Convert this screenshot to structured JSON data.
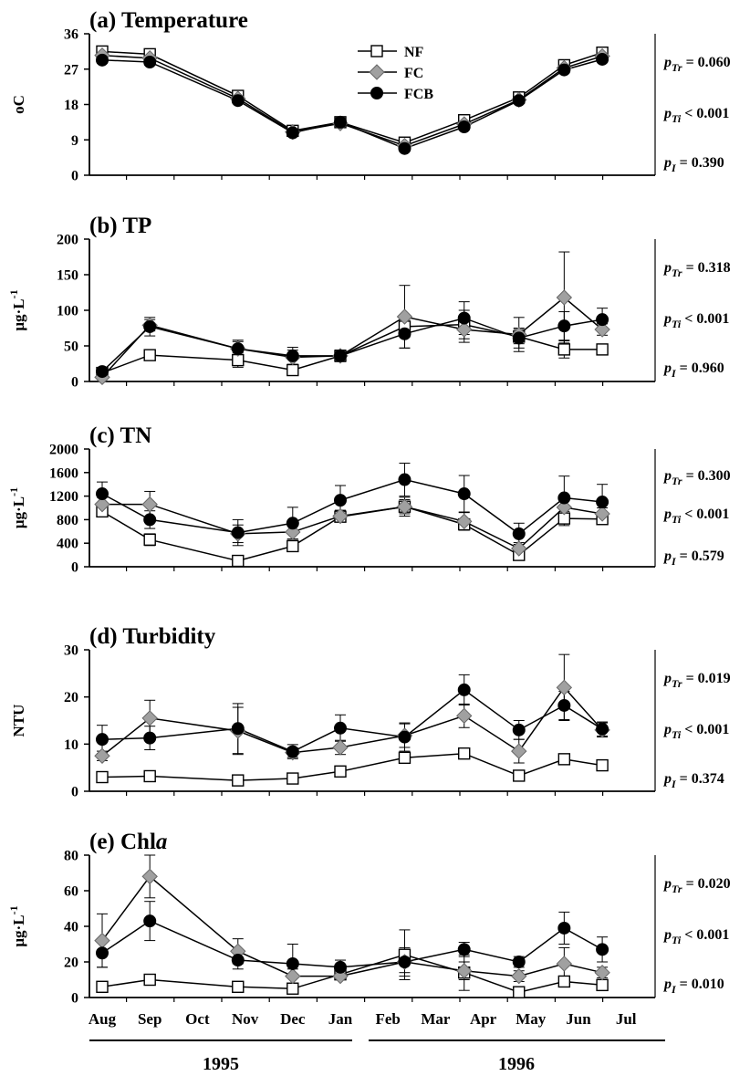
{
  "figure": {
    "months": [
      "Aug",
      "Sep",
      "Oct",
      "Nov",
      "Dec",
      "Jan",
      "Feb",
      "Mar",
      "Apr",
      "May",
      "Jun",
      "Jul"
    ],
    "years": [
      "1995",
      "1996"
    ],
    "legend": [
      "NF",
      "FC",
      "FCB"
    ],
    "colors": {
      "NF": "#ffffff",
      "FC": "#a0a0a0",
      "FCB": "#000000",
      "line": "#000000"
    }
  },
  "chart_data": [
    {
      "type": "line",
      "title": "(a) Temperature",
      "ylabel": "oC",
      "yticks": [
        "0",
        "9",
        "18",
        "27",
        "36"
      ],
      "ylim": [
        0,
        36
      ],
      "x": [
        0,
        1,
        2.85,
        4,
        5,
        6.35,
        7.6,
        8.75,
        9.7,
        10.5
      ],
      "series": [
        {
          "name": "NF",
          "values": [
            31.5,
            30.8,
            20.2,
            11.3,
            13.5,
            8.3,
            14.0,
            19.8,
            28.0,
            31.2
          ],
          "err": [
            0.8,
            0.8,
            0.8,
            0.6,
            0.5,
            0.5,
            0.8,
            0.8,
            0.7,
            0.8
          ]
        },
        {
          "name": "FC",
          "values": [
            30.5,
            29.8,
            19.5,
            11.0,
            13.2,
            7.5,
            13.0,
            19.2,
            27.3,
            30.3
          ],
          "err": [
            0.8,
            0.8,
            0.8,
            0.6,
            0.5,
            0.5,
            0.8,
            0.8,
            0.7,
            0.8
          ]
        },
        {
          "name": "FCB",
          "values": [
            29.3,
            28.8,
            19.0,
            10.8,
            13.5,
            6.8,
            12.3,
            19.0,
            26.8,
            29.5
          ],
          "err": [
            0.8,
            0.8,
            0.8,
            0.6,
            0.5,
            0.5,
            0.8,
            0.8,
            0.7,
            0.8
          ]
        }
      ],
      "stats": [
        {
          "sub": "Tr",
          "text": " = 0.060"
        },
        {
          "sub": "Ti",
          "text": " < 0.001"
        },
        {
          "sub": "I",
          "text": " = 0.390"
        }
      ]
    },
    {
      "type": "line",
      "title": "(b)  TP",
      "ylabel": "μg·L",
      "ylabel_sup": "-1",
      "yticks": [
        "0",
        "50",
        "100",
        "150",
        "200"
      ],
      "ylim": [
        0,
        200
      ],
      "x": [
        0,
        1,
        2.85,
        4,
        5,
        6.35,
        7.6,
        8.75,
        9.7,
        10.5
      ],
      "series": [
        {
          "name": "NF",
          "values": [
            12,
            37,
            30,
            16,
            36,
            77,
            80,
            63,
            45,
            45
          ],
          "err": [
            2,
            5,
            10,
            5,
            8,
            15,
            20,
            10,
            12,
            4
          ]
        },
        {
          "name": "FC",
          "values": [
            6,
            79,
            46,
            34,
            36,
            91,
            73,
            66,
            118,
            73
          ],
          "err": [
            3,
            8,
            10,
            10,
            8,
            44,
            18,
            24,
            64,
            8
          ]
        },
        {
          "name": "FCB",
          "values": [
            14,
            77,
            46,
            36,
            36,
            67,
            89,
            61,
            78,
            87
          ],
          "err": [
            3,
            13,
            12,
            12,
            5,
            20,
            23,
            14,
            20,
            16
          ]
        }
      ],
      "stats": [
        {
          "sub": "Tr",
          "text": " = 0.318"
        },
        {
          "sub": "Ti",
          "text": " < 0.001"
        },
        {
          "sub": "I",
          "text": " = 0.960"
        }
      ]
    },
    {
      "type": "line",
      "title": "(c)  TN",
      "ylabel": "μg·L",
      "ylabel_sup": "-1",
      "yticks": [
        "0",
        "400",
        "800",
        "1200",
        "1600",
        "2000"
      ],
      "ylim": [
        0,
        2000
      ],
      "x": [
        0,
        1,
        2.85,
        4,
        5,
        6.35,
        7.6,
        8.75,
        9.7,
        10.5
      ],
      "series": [
        {
          "name": "NF",
          "values": [
            940,
            460,
            100,
            350,
            850,
            1020,
            720,
            200,
            820,
            810
          ],
          "err": [
            60,
            100,
            60,
            60,
            80,
            120,
            80,
            60,
            120,
            80
          ]
        },
        {
          "name": "FC",
          "values": [
            1060,
            1060,
            560,
            590,
            860,
            1020,
            770,
            310,
            1010,
            900
          ],
          "err": [
            120,
            220,
            150,
            120,
            100,
            160,
            150,
            100,
            180,
            100
          ]
        },
        {
          "name": "FCB",
          "values": [
            1240,
            800,
            580,
            740,
            1130,
            1480,
            1240,
            560,
            1170,
            1100
          ],
          "err": [
            200,
            150,
            220,
            270,
            250,
            280,
            310,
            180,
            370,
            300
          ]
        }
      ],
      "stats": [
        {
          "sub": "Tr",
          "text": " = 0.300"
        },
        {
          "sub": "Ti",
          "text": " < 0.001"
        },
        {
          "sub": "I",
          "text": " = 0.579"
        }
      ]
    },
    {
      "type": "line",
      "title": "(d)  Turbidity",
      "ylabel": "NTU",
      "yticks": [
        "0",
        "10",
        "20",
        "30"
      ],
      "ylim": [
        0,
        30
      ],
      "x": [
        0,
        1,
        2.85,
        4,
        5,
        6.35,
        7.6,
        8.75,
        9.7,
        10.5
      ],
      "series": [
        {
          "name": "NF",
          "values": [
            3.0,
            3.2,
            2.3,
            2.7,
            4.2,
            7.1,
            8.0,
            3.3,
            6.8,
            5.5
          ],
          "err": [
            0.3,
            0.3,
            0.3,
            0.3,
            0.4,
            1.0,
            0.8,
            0.4,
            0.4,
            0.4
          ]
        },
        {
          "name": "FC",
          "values": [
            7.5,
            15.5,
            12.8,
            8.2,
            9.3,
            11.8,
            16.0,
            8.5,
            22.0,
            13.0
          ],
          "err": [
            1.0,
            3.8,
            5.0,
            1.0,
            1.5,
            2.5,
            2.5,
            2.5,
            7.0,
            1.5
          ]
        },
        {
          "name": "FCB",
          "values": [
            11.0,
            11.3,
            13.3,
            8.4,
            13.4,
            11.5,
            21.5,
            13.0,
            18.2,
            13.2
          ],
          "err": [
            3.0,
            2.5,
            5.3,
            1.5,
            2.8,
            3.0,
            3.2,
            2.0,
            3.0,
            1.5
          ]
        }
      ],
      "stats": [
        {
          "sub": "Tr",
          "text": " = 0.019"
        },
        {
          "sub": "Ti",
          "text": " < 0.001"
        },
        {
          "sub": "I",
          "text": " = 0.374"
        }
      ]
    },
    {
      "type": "line",
      "title": "(e)  Chl",
      "title_italic": "a",
      "ylabel": "μg·L",
      "ylabel_sup": "-1",
      "yticks": [
        "0",
        "20",
        "40",
        "60",
        "80"
      ],
      "ylim": [
        0,
        80
      ],
      "x": [
        0,
        1,
        2.85,
        4,
        5,
        6.35,
        7.6,
        8.75,
        9.7,
        10.5
      ],
      "series": [
        {
          "name": "NF",
          "values": [
            6,
            10,
            6,
            5,
            13,
            24,
            14,
            3,
            9,
            7
          ],
          "err": [
            1,
            1,
            1,
            1,
            2,
            14,
            10,
            1,
            3,
            1
          ]
        },
        {
          "name": "FC",
          "values": [
            32,
            68,
            26,
            12,
            12,
            20,
            15,
            12,
            19,
            14
          ],
          "err": [
            15,
            12,
            7,
            4,
            2,
            6,
            5,
            3,
            9,
            3
          ]
        },
        {
          "name": "FCB",
          "values": [
            25,
            43,
            21,
            19,
            17,
            20,
            27,
            20,
            39,
            27
          ],
          "err": [
            8,
            11,
            5,
            11,
            4,
            8,
            4,
            3,
            9,
            7
          ]
        }
      ],
      "stats": [
        {
          "sub": "Tr",
          "text": " = 0.020"
        },
        {
          "sub": "Ti",
          "text": " < 0.001"
        },
        {
          "sub": "I",
          "text": " = 0.010"
        }
      ]
    }
  ]
}
